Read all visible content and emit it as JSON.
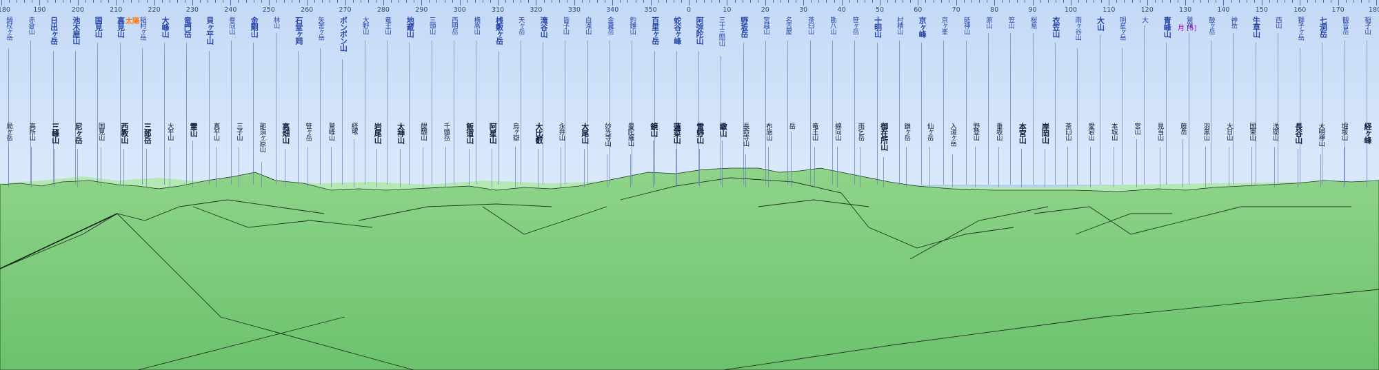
{
  "axis": {
    "labels": [
      "180",
      "190",
      "200",
      "210",
      "220",
      "230",
      "240",
      "250",
      "260",
      "270",
      "280",
      "290",
      "300",
      "310",
      "320",
      "330",
      "340",
      "350",
      "0",
      "10",
      "20",
      "30",
      "40",
      "50",
      "60",
      "70",
      "80",
      "90",
      "100",
      "110",
      "120",
      "130",
      "140",
      "150",
      "160",
      "170",
      "180"
    ]
  },
  "celestial": {
    "sun_label": "太陽",
    "moon_label": "月 [5]"
  },
  "colors": {
    "sky_top": "#c4d9f6",
    "ground_top": "#8ed48a",
    "ground_bottom": "#6cc26c",
    "far_ridge": "#b4e8b4"
  },
  "peaks": {
    "far": [
      {
        "name": "鍋杖ヶ岳"
      },
      {
        "name": "赤倉山"
      },
      {
        "name": "日出ヶ岳",
        "strong": true
      },
      {
        "name": "池木屋山",
        "strong": true
      },
      {
        "name": "国見山",
        "strong": true
      },
      {
        "name": "高見山",
        "strong": true
      },
      {
        "name": "稲村ヶ岳"
      },
      {
        "name": "大峰山",
        "strong": true
      },
      {
        "name": "竜門岳",
        "strong": true
      },
      {
        "name": "貝ヶ平山",
        "strong": true
      },
      {
        "name": "巻向山"
      },
      {
        "name": "金剛山",
        "strong": true
      },
      {
        "name": "林山"
      },
      {
        "name": "石堂ヶ岡",
        "strong": true
      },
      {
        "name": "矢筈ヶ岳"
      },
      {
        "name": "ポンポン山",
        "strong": true
      },
      {
        "name": "大野山"
      },
      {
        "name": "竜王山"
      },
      {
        "name": "地蔵山",
        "strong": true
      },
      {
        "name": "三頭山"
      },
      {
        "name": "西明岳"
      },
      {
        "name": "横高山"
      },
      {
        "name": "桟敷ヶ岳",
        "strong": true
      },
      {
        "name": "天ヶ岳"
      },
      {
        "name": "滝谷山",
        "strong": true
      },
      {
        "name": "皆子山"
      },
      {
        "name": "白滝山"
      },
      {
        "name": "金糞岳"
      },
      {
        "name": "釣鐘山"
      },
      {
        "name": "百里ヶ岳",
        "strong": true
      },
      {
        "name": "蛇谷ヶ峰",
        "strong": true
      },
      {
        "name": "阿弥陀山",
        "strong": true
      },
      {
        "name": "三十三間山"
      },
      {
        "name": "野坂岳",
        "strong": true
      },
      {
        "name": "宮越山"
      },
      {
        "name": "名古屋"
      },
      {
        "name": "茶臼山"
      },
      {
        "name": "勘八山"
      },
      {
        "name": "笹ヶ岳"
      },
      {
        "name": "十明山",
        "strong": true
      },
      {
        "name": "村積山"
      },
      {
        "name": "京ヶ峰",
        "strong": true
      },
      {
        "name": "京ヶ峯"
      },
      {
        "name": "砥神山"
      },
      {
        "name": "原山"
      },
      {
        "name": "笠山"
      },
      {
        "name": "桜島"
      },
      {
        "name": "衣笠山",
        "strong": true
      },
      {
        "name": "雨ヶ谷山"
      },
      {
        "name": "大山",
        "strong": true
      },
      {
        "name": "明星ヶ岳"
      },
      {
        "name": "大"
      },
      {
        "name": "青峰山",
        "strong": true
      },
      {
        "name": "鷲嶺"
      },
      {
        "name": "鼓ヶ岳"
      },
      {
        "name": "神岳"
      },
      {
        "name": "牛草山",
        "strong": true
      },
      {
        "name": "西山"
      },
      {
        "name": "獅子ヶ岳"
      },
      {
        "name": "七洞岳",
        "strong": true
      },
      {
        "name": "観音岳"
      },
      {
        "name": "稲子山"
      }
    ],
    "near": [
      {
        "name": "局ヶ岳"
      },
      {
        "name": "高所山"
      },
      {
        "name": "三峰山",
        "strong": true
      },
      {
        "name": "尼ヶ岳",
        "strong": true
      },
      {
        "name": "国見山"
      },
      {
        "name": "西教山",
        "strong": true
      },
      {
        "name": "三郎岳",
        "strong": true
      },
      {
        "name": "大平山"
      },
      {
        "name": "霊山",
        "strong": true
      },
      {
        "name": "真平山"
      },
      {
        "name": "三子山"
      },
      {
        "name": "那須ヶ原山"
      },
      {
        "name": "高畑山",
        "strong": true
      },
      {
        "name": "笹ヶ岳"
      },
      {
        "name": "鷲峰山"
      },
      {
        "name": "経塚"
      },
      {
        "name": "岩尾山",
        "strong": true
      },
      {
        "name": "太神山",
        "strong": true
      },
      {
        "name": "醍醐山"
      },
      {
        "name": "千頭岳"
      },
      {
        "name": "飯道山",
        "strong": true
      },
      {
        "name": "阿星山",
        "strong": true
      },
      {
        "name": "烏ヶ嶽"
      },
      {
        "name": "大比叡",
        "strong": true
      },
      {
        "name": "永井山"
      },
      {
        "name": "大尾山",
        "strong": true
      },
      {
        "name": "妙光寺山"
      },
      {
        "name": "曼陀羅山"
      },
      {
        "name": "鏡山",
        "strong": true
      },
      {
        "name": "蓮菜山",
        "strong": true
      },
      {
        "name": "雪野山",
        "strong": true
      },
      {
        "name": "繖山",
        "strong": true
      },
      {
        "name": "長命寺山"
      },
      {
        "name": "布施山"
      },
      {
        "name": "岳"
      },
      {
        "name": "竜王山"
      },
      {
        "name": "綿向山"
      },
      {
        "name": "雨乞岳"
      },
      {
        "name": "御在所山",
        "strong": true
      },
      {
        "name": "鎌ヶ岳"
      },
      {
        "name": "仙ヶ岳"
      },
      {
        "name": "入道ヶ岳"
      },
      {
        "name": "野登山"
      },
      {
        "name": "垂坂山"
      },
      {
        "name": "本宮山",
        "strong": true
      },
      {
        "name": "岸岡山",
        "strong": true
      },
      {
        "name": "茶臼山"
      },
      {
        "name": "愛宕山"
      },
      {
        "name": "本城山"
      },
      {
        "name": "宮山"
      },
      {
        "name": "見当山"
      },
      {
        "name": "藤岳"
      },
      {
        "name": "羽黒山"
      },
      {
        "name": "大日山"
      },
      {
        "name": "国束山"
      },
      {
        "name": "浅間山"
      },
      {
        "name": "長谷山",
        "strong": true
      },
      {
        "name": "大明神山"
      },
      {
        "name": "堀坂山"
      },
      {
        "name": "経ヶ峰",
        "strong": true
      }
    ]
  }
}
